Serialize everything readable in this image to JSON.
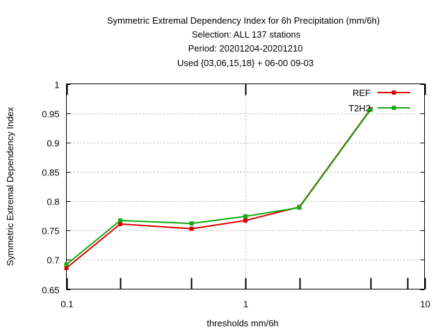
{
  "chart_data": {
    "type": "line",
    "title_lines": [
      "Symmetric Extremal Dependency Index  for 6h Precipitation (mm/6h)",
      "Selection: ALL    137 stations",
      "Period: 20201204-20201210",
      "Used {03,06,15,18} + 06-00 09-03"
    ],
    "xlabel": "thresholds mm/6h",
    "ylabel": "Symmetric Extremal Dependency Index",
    "x_scale": "log",
    "xlim": [
      0.1,
      10
    ],
    "ylim": [
      0.65,
      1.0
    ],
    "x_ticks": [
      0.1,
      1,
      10
    ],
    "x_tick_labels": [
      "0.1",
      "1",
      "10"
    ],
    "x_minor_ticks": [
      0.2,
      0.5,
      2,
      5,
      8
    ],
    "y_ticks": [
      0.65,
      0.7,
      0.75,
      0.8,
      0.85,
      0.9,
      0.95,
      1.0
    ],
    "y_tick_labels": [
      "0.65",
      "0.7",
      "0.75",
      "0.8",
      "0.85",
      "0.9",
      "0.95",
      "1"
    ],
    "grid": true,
    "legend_position": "top-right",
    "x": [
      0.1,
      0.2,
      0.5,
      1,
      2,
      5
    ],
    "series": [
      {
        "name": "REF",
        "color": "#dd0000",
        "values": [
          0.686,
          0.761,
          0.753,
          0.767,
          0.79,
          0.957
        ]
      },
      {
        "name": "T2H2",
        "color": "#11aa11",
        "values": [
          0.692,
          0.767,
          0.762,
          0.774,
          0.789,
          0.956
        ]
      }
    ]
  }
}
